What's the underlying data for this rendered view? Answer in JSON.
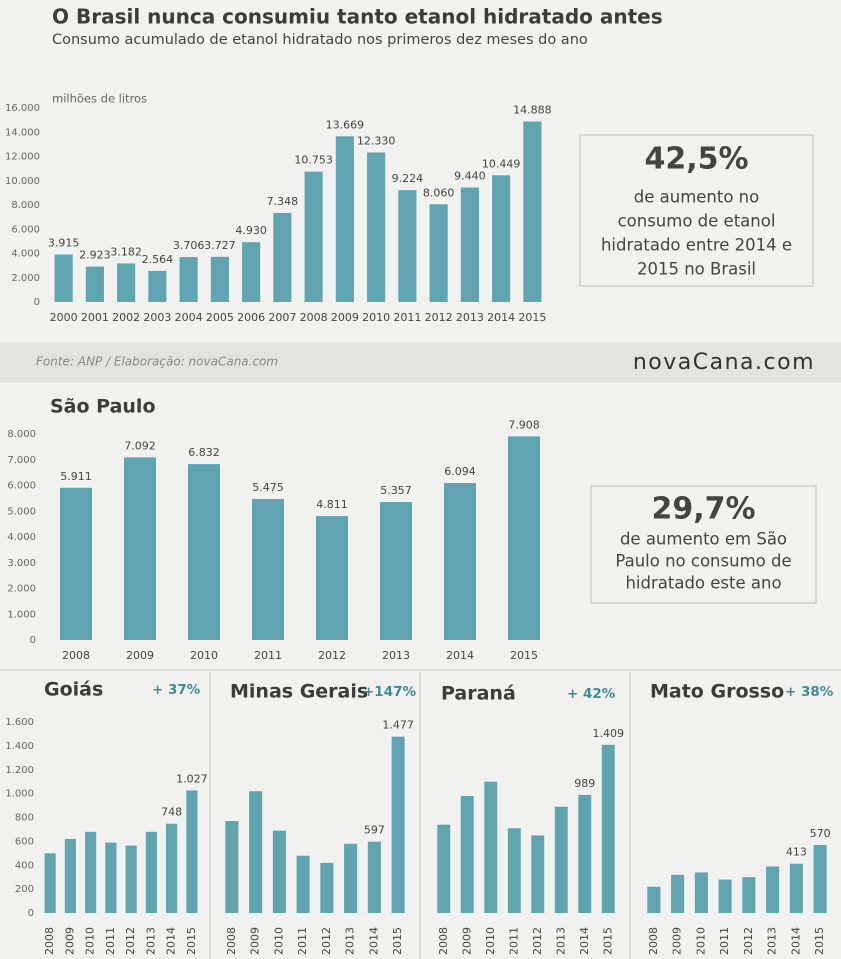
{
  "chart_data": [
    {
      "type": "bar",
      "title": "O Brasil nunca consumiu tanto etanol hidratado antes",
      "subtitle": "Consumo acumulado de etanol hidratado nos primeros dez meses do ano",
      "y_label": "milhões de litros",
      "categories": [
        "2000",
        "2001",
        "2002",
        "2003",
        "2004",
        "2005",
        "2006",
        "2007",
        "2008",
        "2009",
        "2010",
        "2011",
        "2012",
        "2013",
        "2014",
        "2015"
      ],
      "values": [
        3915,
        2923,
        3182,
        2564,
        3706,
        3727,
        4930,
        7348,
        10753,
        13669,
        12330,
        9224,
        8060,
        9440,
        10449,
        14888
      ],
      "value_labels": [
        "3.915",
        "2.923",
        "3.182",
        "2.564",
        "3.706",
        "3.727",
        "4.930",
        "7.348",
        "10.753",
        "13.669",
        "12.330",
        "9.224",
        "8.060",
        "9.440",
        "10.449",
        "14.888"
      ],
      "color": "#5fa4ae",
      "ylim": [
        0,
        16000
      ],
      "yticks": [
        0,
        {
          "value": 2000,
          "label": "2.000"
        },
        {
          "value": 4000,
          "label": "4.000"
        },
        {
          "value": 6000,
          "label": "6.000"
        },
        {
          "value": 8000,
          "label": "8.000"
        },
        {
          "value": 10000,
          "label": "10.000"
        },
        {
          "value": 12000,
          "label": "12.000"
        },
        {
          "value": 14000,
          "label": "14.000"
        },
        {
          "value": 16000,
          "label": "16.000"
        }
      ],
      "grid": false,
      "callout": {
        "headline": "42,5%",
        "lines": [
          "de aumento no",
          "consumo de etanol",
          "hidratado entre 2014 e",
          "2015 no Brasil"
        ]
      }
    },
    {
      "type": "bar",
      "title": "São Paulo",
      "categories": [
        "2008",
        "2009",
        "2010",
        "2011",
        "2012",
        "2013",
        "2014",
        "2015"
      ],
      "values": [
        5911,
        7092,
        6832,
        5475,
        4811,
        5357,
        6094,
        7908
      ],
      "value_labels": [
        "5.911",
        "7.092",
        "6.832",
        "5.475",
        "4.811",
        "5.357",
        "6.094",
        "7.908"
      ],
      "color": "#5fa4ae",
      "ylim": [
        0,
        8000
      ],
      "yticks": [
        0,
        {
          "value": 1000,
          "label": "1.000"
        },
        {
          "value": 2000,
          "label": "2.000"
        },
        {
          "value": 3000,
          "label": "3.000"
        },
        {
          "value": 4000,
          "label": "4.000"
        },
        {
          "value": 5000,
          "label": "5.000"
        },
        {
          "value": 6000,
          "label": "6.000"
        },
        {
          "value": 7000,
          "label": "7.000"
        },
        {
          "value": 8000,
          "label": "8.000"
        }
      ],
      "grid": false,
      "callout": {
        "headline": "29,7%",
        "lines": [
          "de aumento em São",
          "Paulo no consumo de",
          "hidratado este ano"
        ]
      }
    },
    {
      "type": "bar",
      "title": "Goiás",
      "annotation": "+ 37%",
      "categories": [
        "2008",
        "2009",
        "2010",
        "2011",
        "2012",
        "2013",
        "2014",
        "2015"
      ],
      "values": [
        500,
        620,
        680,
        590,
        565,
        680,
        748,
        1027
      ],
      "value_labels": [
        null,
        null,
        null,
        null,
        null,
        null,
        "748",
        "1.027"
      ],
      "color": "#5fa4ae",
      "ylim": [
        0,
        1600
      ],
      "yticks": [
        0,
        200,
        400,
        600,
        800,
        {
          "value": 1000,
          "label": "1.000"
        },
        {
          "value": 1200,
          "label": "1.200"
        },
        {
          "value": 1400,
          "label": "1.400"
        },
        {
          "value": 1600,
          "label": "1.600"
        }
      ],
      "grid": false
    },
    {
      "type": "bar",
      "title": "Minas Gerais",
      "annotation": "+147%",
      "categories": [
        "2008",
        "2009",
        "2010",
        "2011",
        "2012",
        "2013",
        "2014",
        "2015"
      ],
      "values": [
        770,
        1020,
        690,
        480,
        420,
        580,
        597,
        1477
      ],
      "value_labels": [
        null,
        null,
        null,
        null,
        null,
        null,
        "597",
        "1.477"
      ],
      "color": "#5fa4ae",
      "ylim": [
        0,
        1600
      ],
      "grid": false
    },
    {
      "type": "bar",
      "title": "Paraná",
      "annotation": "+ 42%",
      "categories": [
        "2008",
        "2009",
        "2010",
        "2011",
        "2012",
        "2013",
        "2014",
        "2015"
      ],
      "values": [
        740,
        980,
        1100,
        710,
        650,
        890,
        989,
        1409
      ],
      "value_labels": [
        null,
        null,
        null,
        null,
        null,
        null,
        "989",
        "1.409"
      ],
      "color": "#5fa4ae",
      "ylim": [
        0,
        1600
      ],
      "grid": false
    },
    {
      "type": "bar",
      "title": "Mato Grosso",
      "annotation": "+ 38%",
      "categories": [
        "2008",
        "2009",
        "2010",
        "2011",
        "2012",
        "2013",
        "2014",
        "2015"
      ],
      "values": [
        220,
        320,
        340,
        280,
        300,
        390,
        413,
        570
      ],
      "value_labels": [
        null,
        null,
        null,
        null,
        null,
        null,
        "413",
        "570"
      ],
      "color": "#5fa4ae",
      "ylim": [
        0,
        1600
      ],
      "grid": false
    }
  ],
  "source": "Fonte:  ANP / Elaboração:  novaCana.com",
  "logo": "novaCana.com"
}
